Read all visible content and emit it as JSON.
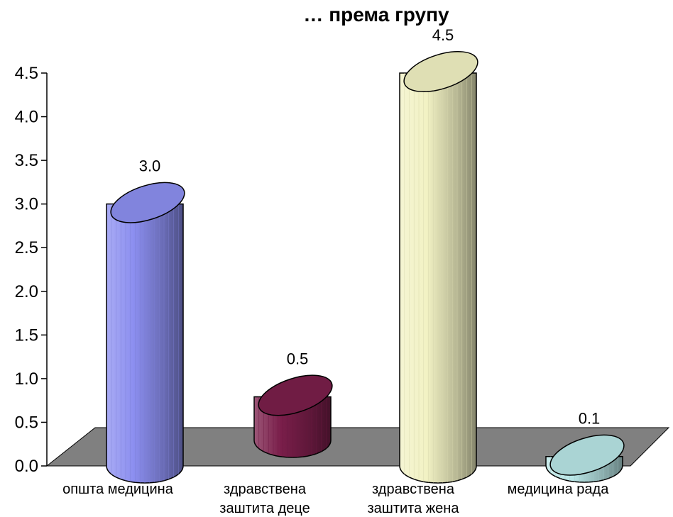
{
  "chart_data": {
    "type": "bar",
    "style": "3d-cylinder",
    "title": "… према групу",
    "categories": [
      [
        "општа медицина"
      ],
      [
        "здравствена",
        "заштита деце"
      ],
      [
        "здравствена",
        "заштита жена"
      ],
      [
        "медицина рада"
      ]
    ],
    "values": [
      3.0,
      0.5,
      4.5,
      0.1
    ],
    "data_labels": [
      "3.0",
      "0.5",
      "4.5",
      "0.1"
    ],
    "colors": [
      "#8c8ff0",
      "#7a1e4a",
      "#f2f2c4",
      "#b9e6e6"
    ],
    "ylim": [
      0,
      4.5
    ],
    "yticks": [
      "0.0",
      "0.5",
      "1.0",
      "1.5",
      "2.0",
      "2.5",
      "3.0",
      "3.5",
      "4.0",
      "4.5"
    ],
    "floor_color": "#808080",
    "legend": "none",
    "grid": false
  }
}
